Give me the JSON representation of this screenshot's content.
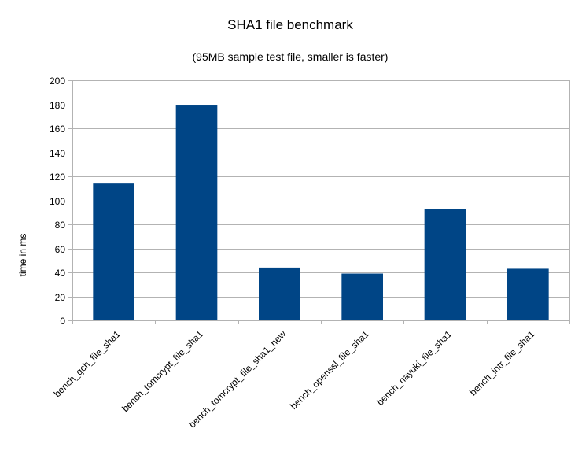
{
  "chart_data": {
    "type": "bar",
    "title": "SHA1 file benchmark",
    "subtitle": "(95MB sample test file, smaller is faster)",
    "xlabel": "",
    "ylabel": "time in ms",
    "categories": [
      "bench_qch_file_sha1",
      "bench_tomcrypt_file_sha1",
      "bench_tomcrypt_file_sha1_new",
      "bench_openssl_file_sha1",
      "bench_nayuki_file_sha1",
      "bench_intr_file_sha1"
    ],
    "values": [
      114,
      179,
      44,
      39,
      93,
      43
    ],
    "ylim": [
      0,
      200
    ],
    "yticks": [
      0,
      20,
      40,
      60,
      80,
      100,
      120,
      140,
      160,
      180,
      200
    ],
    "grid": true,
    "legend": "none",
    "colors": {
      "bar": "#004586",
      "grid": "#b3b3b3",
      "axis": "#b3b3b3"
    }
  }
}
